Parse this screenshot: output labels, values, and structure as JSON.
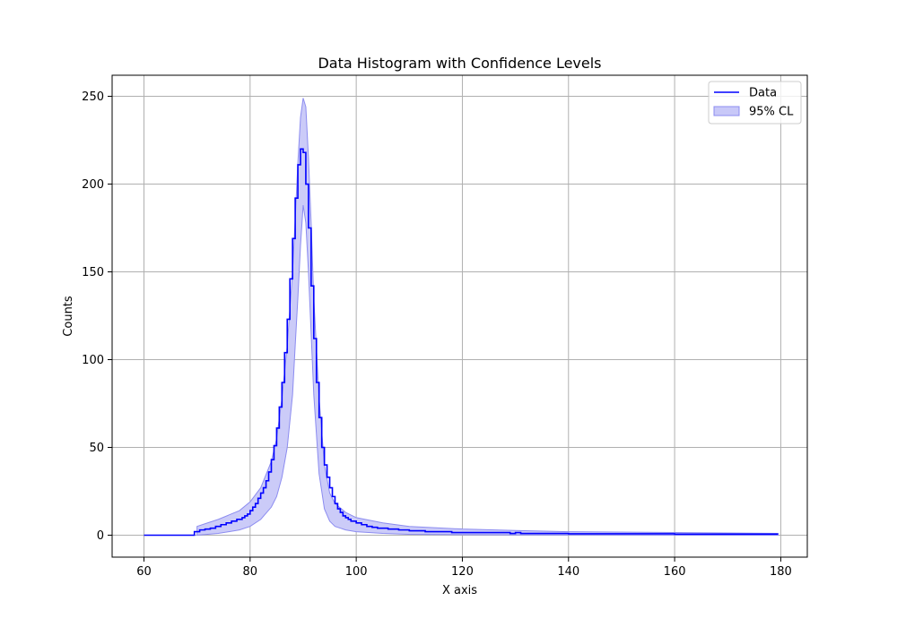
{
  "chart_data": {
    "type": "line",
    "title": "Data Histogram with Confidence Levels",
    "xlabel": "X axis",
    "ylabel": "Counts",
    "xlim": [
      54,
      185
    ],
    "ylim": [
      -12.5,
      262
    ],
    "xticks": [
      60,
      80,
      100,
      120,
      140,
      160,
      180
    ],
    "yticks": [
      0,
      50,
      100,
      150,
      200,
      250
    ],
    "xtick_labels": [
      "60",
      "80",
      "100",
      "120",
      "140",
      "160",
      "180"
    ],
    "ytick_labels": [
      "0",
      "50",
      "100",
      "150",
      "200",
      "250"
    ],
    "grid": true,
    "legend_position": "top-right",
    "colors": {
      "line": "#0000ff",
      "band_fill": "#c8c8f8",
      "band_edge": "#8c8cf0",
      "grid": "#b0b0b0"
    },
    "series": [
      {
        "name": "Data",
        "kind": "step",
        "bins": [
          [
            60,
            69.5,
            0
          ],
          [
            69.5,
            70.5,
            2
          ],
          [
            70.5,
            71.5,
            3
          ],
          [
            71.5,
            72.5,
            3.5
          ],
          [
            72.5,
            73.5,
            4
          ],
          [
            73.5,
            74.5,
            5
          ],
          [
            74.5,
            75.5,
            6
          ],
          [
            75.5,
            76.5,
            7
          ],
          [
            76.5,
            77.5,
            8
          ],
          [
            77.5,
            78.5,
            9
          ],
          [
            78.5,
            79,
            10
          ],
          [
            79,
            79.5,
            11
          ],
          [
            79.5,
            80,
            12
          ],
          [
            80,
            80.5,
            14
          ],
          [
            80.5,
            81,
            16
          ],
          [
            81,
            81.5,
            18
          ],
          [
            81.5,
            82,
            21
          ],
          [
            82,
            82.5,
            24
          ],
          [
            82.5,
            83,
            27
          ],
          [
            83,
            83.5,
            31
          ],
          [
            83.5,
            84,
            36
          ],
          [
            84,
            84.5,
            43
          ],
          [
            84.5,
            85,
            51
          ],
          [
            85,
            85.5,
            61
          ],
          [
            85.5,
            86,
            73
          ],
          [
            86,
            86.5,
            87
          ],
          [
            86.5,
            87,
            104
          ],
          [
            87,
            87.5,
            123
          ],
          [
            87.5,
            88,
            146
          ],
          [
            88,
            88.5,
            169
          ],
          [
            88.5,
            89,
            192
          ],
          [
            89,
            89.5,
            211
          ],
          [
            89.5,
            90,
            220
          ],
          [
            90,
            90.5,
            218
          ],
          [
            90.5,
            91,
            200
          ],
          [
            91,
            91.5,
            175
          ],
          [
            91.5,
            92,
            142
          ],
          [
            92,
            92.5,
            112
          ],
          [
            92.5,
            93,
            87
          ],
          [
            93,
            93.5,
            67
          ],
          [
            93.5,
            94,
            50
          ],
          [
            94,
            94.5,
            40
          ],
          [
            94.5,
            95,
            33
          ],
          [
            95,
            95.5,
            27
          ],
          [
            95.5,
            96,
            22
          ],
          [
            96,
            96.5,
            18
          ],
          [
            96.5,
            97,
            15
          ],
          [
            97,
            97.5,
            13
          ],
          [
            97.5,
            98,
            11
          ],
          [
            98,
            98.5,
            10
          ],
          [
            98.5,
            99,
            9
          ],
          [
            99,
            100,
            8
          ],
          [
            100,
            101,
            7
          ],
          [
            101,
            102,
            6
          ],
          [
            102,
            103,
            5
          ],
          [
            103,
            104,
            4.5
          ],
          [
            104,
            106,
            4
          ],
          [
            106,
            108,
            3.5
          ],
          [
            108,
            110,
            3
          ],
          [
            110,
            113,
            2.5
          ],
          [
            113,
            118,
            2
          ],
          [
            118,
            129,
            1.5
          ],
          [
            129,
            130,
            1
          ],
          [
            130,
            131,
            1.5
          ],
          [
            131,
            132,
            1
          ],
          [
            132,
            140,
            1
          ],
          [
            140,
            160,
            0.8
          ],
          [
            160,
            179.5,
            0.6
          ]
        ]
      },
      {
        "name": "95% CL",
        "kind": "band",
        "x": [
          70,
          72,
          74,
          76,
          78,
          80,
          82,
          84,
          85,
          86,
          87,
          88,
          88.5,
          89,
          89.5,
          90,
          90.5,
          91,
          91.5,
          92,
          93,
          94,
          95,
          96,
          98,
          100,
          105,
          110,
          120,
          130,
          140,
          160,
          179.5
        ],
        "lower": [
          0,
          0.5,
          1,
          2,
          3,
          5,
          9,
          16,
          22,
          33,
          50,
          80,
          108,
          135,
          165,
          188,
          178,
          150,
          115,
          80,
          35,
          15,
          8,
          5,
          3,
          2,
          1,
          0.5,
          0.3,
          0.2,
          0.1,
          0,
          0
        ],
        "upper": [
          5,
          7,
          9,
          11.5,
          14,
          19,
          27,
          42,
          55,
          78,
          108,
          150,
          180,
          212,
          238,
          249,
          244,
          215,
          178,
          135,
          78,
          40,
          24,
          18,
          13,
          10,
          7,
          5,
          3.5,
          2.7,
          2,
          1.5,
          1
        ]
      }
    ]
  }
}
